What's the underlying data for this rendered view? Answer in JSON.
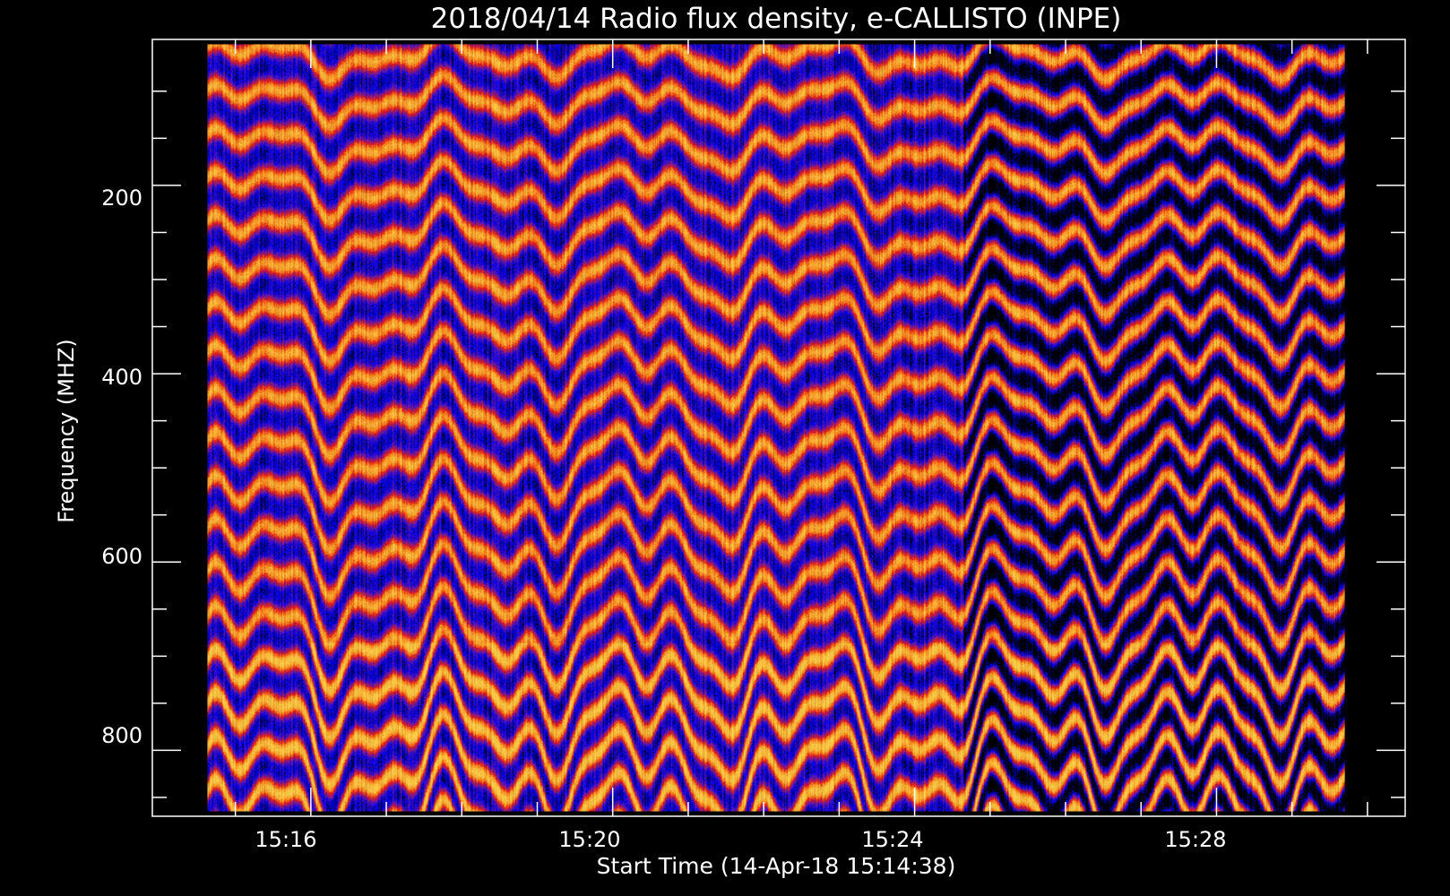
{
  "chart_data": {
    "type": "heatmap",
    "title": "2018/04/14  Radio flux density, e-CALLISTO (INPE)",
    "xlabel": "Start Time (14-Apr-18 15:14:38)",
    "ylabel": "Frequency (MHZ)",
    "x_tick_labels": [
      "15:16",
      "15:20",
      "15:24",
      "15:28"
    ],
    "y_tick_labels": [
      "200",
      "400",
      "600",
      "800"
    ],
    "xlim_minutes_after_1500": [
      13.9,
      30.5
    ],
    "data_x_range_minutes_after_1500": [
      14.63,
      29.7
    ],
    "ylim_mhz": [
      45,
      870
    ],
    "y_axis_inverted": true,
    "colormap": [
      "#000000",
      "#0000ff",
      "#7a1f9a",
      "#e8141b",
      "#ff8a1a",
      "#ffd24a"
    ],
    "background_color": "#000000",
    "foreground_color": "#ffffff"
  }
}
